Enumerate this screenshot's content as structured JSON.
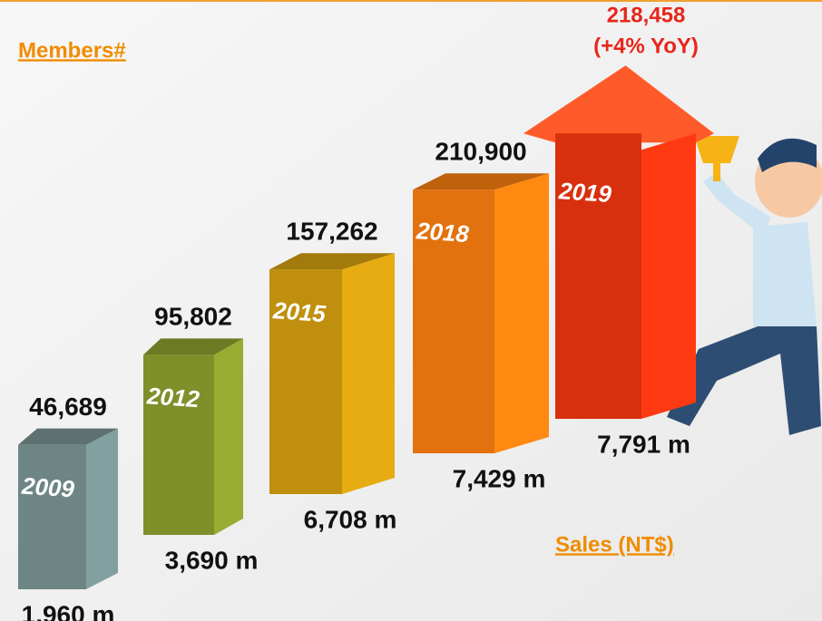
{
  "chart_data": {
    "type": "bar",
    "title": "Members#",
    "x_label": "Sales (NT$)",
    "categories": [
      "2009",
      "2012",
      "2015",
      "2018",
      "2019"
    ],
    "colors": [
      "#6d8585",
      "#7f8f2a",
      "#c08f0e",
      "#e2720e",
      "#d8300f"
    ],
    "series": [
      {
        "name": "Members#",
        "values": [
          46689,
          95802,
          157262,
          210900,
          218458
        ],
        "value_labels": [
          "46,689",
          "95,802",
          "157,262",
          "210,900",
          "218,458"
        ]
      },
      {
        "name": "Sales (NT$)",
        "values": [
          1960,
          3690,
          6708,
          7429,
          7791
        ],
        "value_labels": [
          "1,960 m",
          "3,690 m",
          "6,708 m",
          "7,429 m",
          "7,791 m"
        ]
      }
    ],
    "annotation": "(+4% YoY)"
  }
}
